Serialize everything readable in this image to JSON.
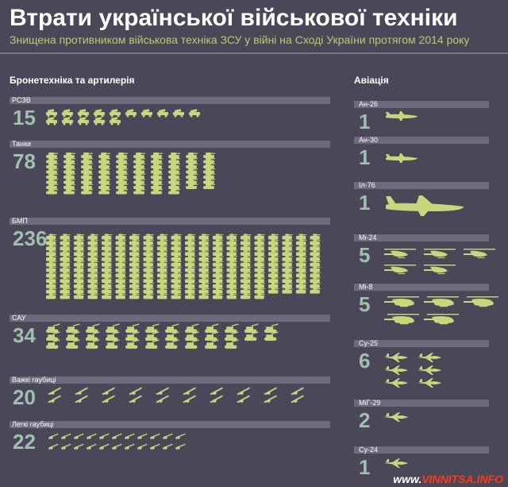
{
  "title": "Втрати української військової техніки",
  "subtitle": "Знищена противником військова техніка ЗСУ у війні на Сході України протягом 2014 року",
  "sections": {
    "armor": "Бронетехніка та артилерія",
    "aviation": "Авіація"
  },
  "watermark": {
    "prefix": "www.",
    "site": "VINNITSA.INFO"
  },
  "colors": {
    "background": "#4a4758",
    "icon": "#c8d67c",
    "number": "#9ec0ad",
    "bar": "#6d6a7b",
    "accent": "#b7cf6a"
  },
  "chart_data": [
    {
      "type": "table",
      "title": "Бронетехніка та артилерія",
      "categories": [
        "РСЗВ",
        "Танки",
        "БМП",
        "САУ",
        "Важкі гаубиці",
        "Легкі гаубиці"
      ],
      "values": [
        15,
        78,
        236,
        34,
        20,
        22
      ],
      "icons": [
        "mlrs-icon",
        "tank-icon",
        "ifv-icon",
        "spg-icon",
        "heavy-howitzer-icon",
        "light-howitzer-icon"
      ]
    },
    {
      "type": "table",
      "title": "Авіація",
      "categories": [
        "Ан-26",
        "Ан-30",
        "Іл-76",
        "Мі-24",
        "Мі-8",
        "Су-25",
        "МіГ-29",
        "Су-24"
      ],
      "values": [
        1,
        1,
        1,
        5,
        5,
        6,
        2,
        1
      ],
      "icons": [
        "transport-plane-icon",
        "transport-plane-icon",
        "heavy-transport-plane-icon",
        "attack-helicopter-icon",
        "helicopter-icon",
        "jet-icon",
        "jet-icon",
        "jet-icon"
      ]
    }
  ]
}
